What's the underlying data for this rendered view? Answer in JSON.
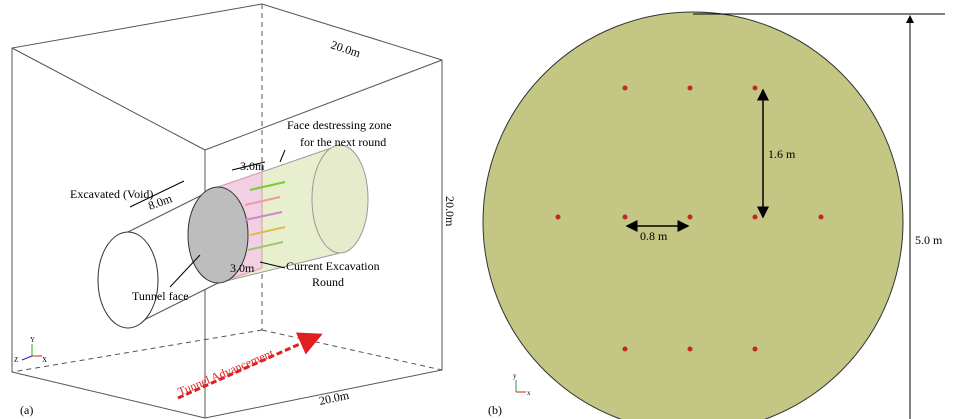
{
  "panel_a": {
    "label": "(a)",
    "box_top": "20.0m",
    "box_side": "20.0m",
    "box_bottom": "20.0m",
    "zone_label": [
      "Face destressing zone",
      "for the next round"
    ],
    "excavated": "Excavated (Void)",
    "length_excavated": "8.0m",
    "length_next": "3.0m",
    "length_current": "3.0m",
    "current_round": [
      "Current Excavation",
      "Round"
    ],
    "tunnel_face": "Tunnel face",
    "advancement": "Tunnel Advancement",
    "axes": [
      "Y",
      "Z",
      "X"
    ]
  },
  "panel_b": {
    "label": "(b)",
    "vertical_spacing": "1.6 m",
    "horizontal_spacing": "0.8 m",
    "diameter": "5.0 m",
    "axes": [
      "y",
      "x"
    ]
  }
}
